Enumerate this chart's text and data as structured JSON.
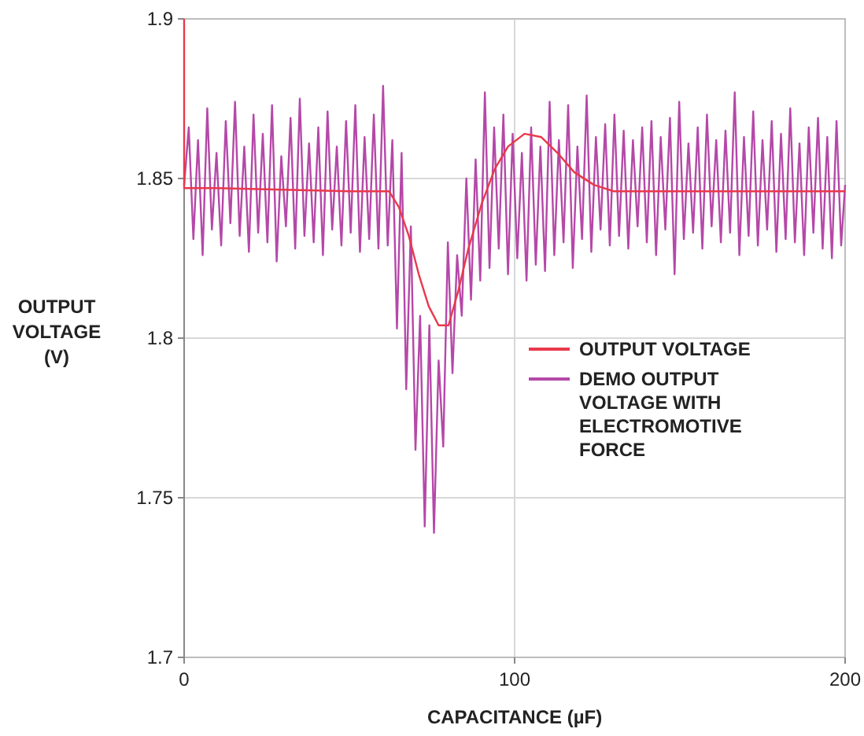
{
  "chart_data": {
    "type": "line",
    "xlabel": "CAPACITANCE (µF)",
    "ylabel": "OUTPUT VOLTAGE (V)",
    "xlim": [
      0,
      200
    ],
    "xticks": [
      0,
      100,
      200
    ],
    "ylim": [
      1.7,
      1.9
    ],
    "yticks": [
      1.7,
      1.75,
      1.8,
      1.85,
      1.9
    ],
    "grid": true,
    "legend": "right",
    "line_style": "solid",
    "marker": "none",
    "series": [
      {
        "name": "OUTPUT VOLTAGE",
        "color": "#e8394b",
        "x": [
          0,
          0,
          10,
          30,
          50,
          62,
          65,
          68,
          71,
          74,
          77,
          80,
          83,
          86,
          90,
          94,
          98,
          103,
          108,
          113,
          118,
          124,
          130,
          150,
          170,
          200
        ],
        "values": [
          1.9,
          1.847,
          1.847,
          1.8465,
          1.846,
          1.846,
          1.841,
          1.832,
          1.82,
          1.81,
          1.804,
          1.804,
          1.815,
          1.828,
          1.842,
          1.853,
          1.86,
          1.864,
          1.863,
          1.858,
          1.852,
          1.848,
          1.846,
          1.846,
          1.846,
          1.846
        ]
      },
      {
        "name": "DEMO OUTPUT VOLTAGE WITH ELECTROMOTIVE FORCE",
        "color": "#b548a8",
        "x": [
          0,
          1.4,
          2.8,
          4.2,
          5.6,
          7,
          8.4,
          9.8,
          11.2,
          12.6,
          14,
          15.4,
          16.8,
          18.2,
          19.6,
          21,
          22.4,
          23.8,
          25.2,
          26.6,
          28,
          29.4,
          30.8,
          32.2,
          33.6,
          35,
          36.4,
          37.8,
          39.2,
          40.6,
          42,
          43.4,
          44.8,
          46.2,
          47.6,
          49,
          50.4,
          51.8,
          53.2,
          54.6,
          56,
          57.4,
          58.8,
          60.2,
          61.6,
          63,
          64.4,
          65.8,
          67.2,
          68.6,
          70,
          71.4,
          72.8,
          74.2,
          75.6,
          77,
          78.4,
          79.8,
          81.2,
          82.6,
          84,
          85.4,
          86.8,
          88.2,
          89.6,
          91,
          92.4,
          93.8,
          95.2,
          96.6,
          98,
          99.4,
          100.8,
          102.2,
          103.6,
          105,
          106.4,
          107.8,
          109.2,
          110.6,
          112,
          113.4,
          114.8,
          116.2,
          117.6,
          119,
          120.4,
          121.8,
          123.2,
          124.6,
          126,
          127.4,
          128.8,
          130.2,
          131.6,
          133,
          134.4,
          135.8,
          137.2,
          138.6,
          140,
          141.4,
          142.8,
          144.2,
          145.6,
          147,
          148.4,
          149.8,
          151.2,
          152.6,
          154,
          155.4,
          156.8,
          158.2,
          159.6,
          161,
          162.4,
          163.8,
          165.2,
          166.6,
          168,
          169.4,
          170.8,
          172.2,
          173.6,
          175,
          176.4,
          177.8,
          179.2,
          180.6,
          182,
          183.4,
          184.8,
          186.2,
          187.6,
          189,
          190.4,
          191.8,
          193.2,
          194.6,
          196,
          197.4,
          198.8,
          200
        ],
        "values": [
          1.848,
          1.866,
          1.831,
          1.862,
          1.826,
          1.872,
          1.834,
          1.858,
          1.829,
          1.868,
          1.836,
          1.874,
          1.832,
          1.86,
          1.827,
          1.87,
          1.833,
          1.864,
          1.83,
          1.873,
          1.824,
          1.857,
          1.835,
          1.869,
          1.828,
          1.875,
          1.832,
          1.861,
          1.83,
          1.866,
          1.826,
          1.871,
          1.834,
          1.86,
          1.829,
          1.868,
          1.833,
          1.873,
          1.827,
          1.863,
          1.831,
          1.87,
          1.828,
          1.879,
          1.829,
          1.862,
          1.803,
          1.858,
          1.784,
          1.835,
          1.765,
          1.807,
          1.741,
          1.804,
          1.739,
          1.793,
          1.766,
          1.83,
          1.789,
          1.826,
          1.807,
          1.85,
          1.812,
          1.856,
          1.818,
          1.877,
          1.822,
          1.866,
          1.828,
          1.87,
          1.82,
          1.864,
          1.825,
          1.858,
          1.818,
          1.866,
          1.823,
          1.86,
          1.821,
          1.874,
          1.826,
          1.862,
          1.83,
          1.873,
          1.822,
          1.86,
          1.831,
          1.876,
          1.827,
          1.863,
          1.834,
          1.867,
          1.829,
          1.87,
          1.832,
          1.865,
          1.828,
          1.862,
          1.835,
          1.866,
          1.83,
          1.868,
          1.826,
          1.863,
          1.834,
          1.869,
          1.82,
          1.874,
          1.831,
          1.861,
          1.833,
          1.866,
          1.828,
          1.87,
          1.835,
          1.862,
          1.83,
          1.865,
          1.833,
          1.877,
          1.826,
          1.863,
          1.832,
          1.871,
          1.829,
          1.862,
          1.834,
          1.868,
          1.827,
          1.864,
          1.831,
          1.872,
          1.83,
          1.861,
          1.826,
          1.866,
          1.833,
          1.869,
          1.828,
          1.863,
          1.825,
          1.868,
          1.829,
          1.848
        ]
      }
    ]
  }
}
